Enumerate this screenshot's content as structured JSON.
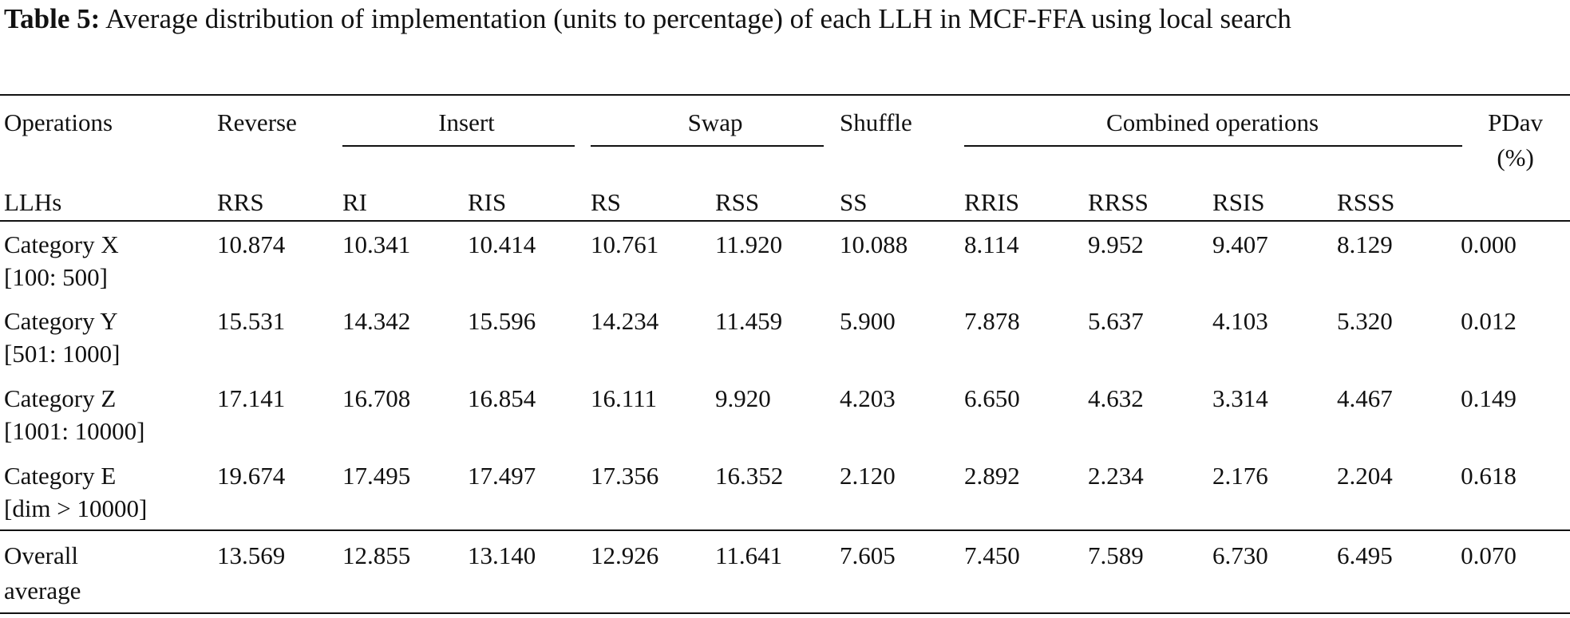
{
  "caption": {
    "label": "Table 5:",
    "text": " Average distribution of implementation (units to percentage) of each LLH in MCF-FFA using local search"
  },
  "header": {
    "operations": "Operations",
    "reverse": "Reverse",
    "insert": "Insert",
    "swap": "Swap",
    "shuffle": "Shuffle",
    "combined": "Combined operations",
    "pdav": "PDav",
    "pdav_unit": "(%)",
    "llhs": "LLHs",
    "subcols": [
      "RRS",
      "RI",
      "RIS",
      "RS",
      "RSS",
      "SS",
      "RRIS",
      "RRSS",
      "RSIS",
      "RSSS"
    ]
  },
  "rows": [
    {
      "name": "Category X",
      "range": "[100: 500]",
      "values": [
        "10.874",
        "10.341",
        "10.414",
        "10.761",
        "11.920",
        "10.088",
        "8.114",
        "9.952",
        "9.407",
        "8.129",
        "0.000"
      ]
    },
    {
      "name": "Category Y",
      "range": "[501: 1000]",
      "values": [
        "15.531",
        "14.342",
        "15.596",
        "14.234",
        "11.459",
        "5.900",
        "7.878",
        "5.637",
        "4.103",
        "5.320",
        "0.012"
      ]
    },
    {
      "name": "Category Z",
      "range": "[1001: 10000]",
      "values": [
        "17.141",
        "16.708",
        "16.854",
        "16.111",
        "9.920",
        "4.203",
        "6.650",
        "4.632",
        "3.314",
        "4.467",
        "0.149"
      ]
    },
    {
      "name": "Category E",
      "range": "[dim > 10000]",
      "values": [
        "19.674",
        "17.495",
        "17.497",
        "17.356",
        "16.352",
        "2.120",
        "2.892",
        "2.234",
        "2.176",
        "2.204",
        "0.618"
      ]
    }
  ],
  "overall": {
    "name": "Overall",
    "name2": "average",
    "values": [
      "13.569",
      "12.855",
      "13.140",
      "12.926",
      "11.641",
      "7.605",
      "7.450",
      "7.589",
      "6.730",
      "6.495",
      "0.070"
    ]
  }
}
